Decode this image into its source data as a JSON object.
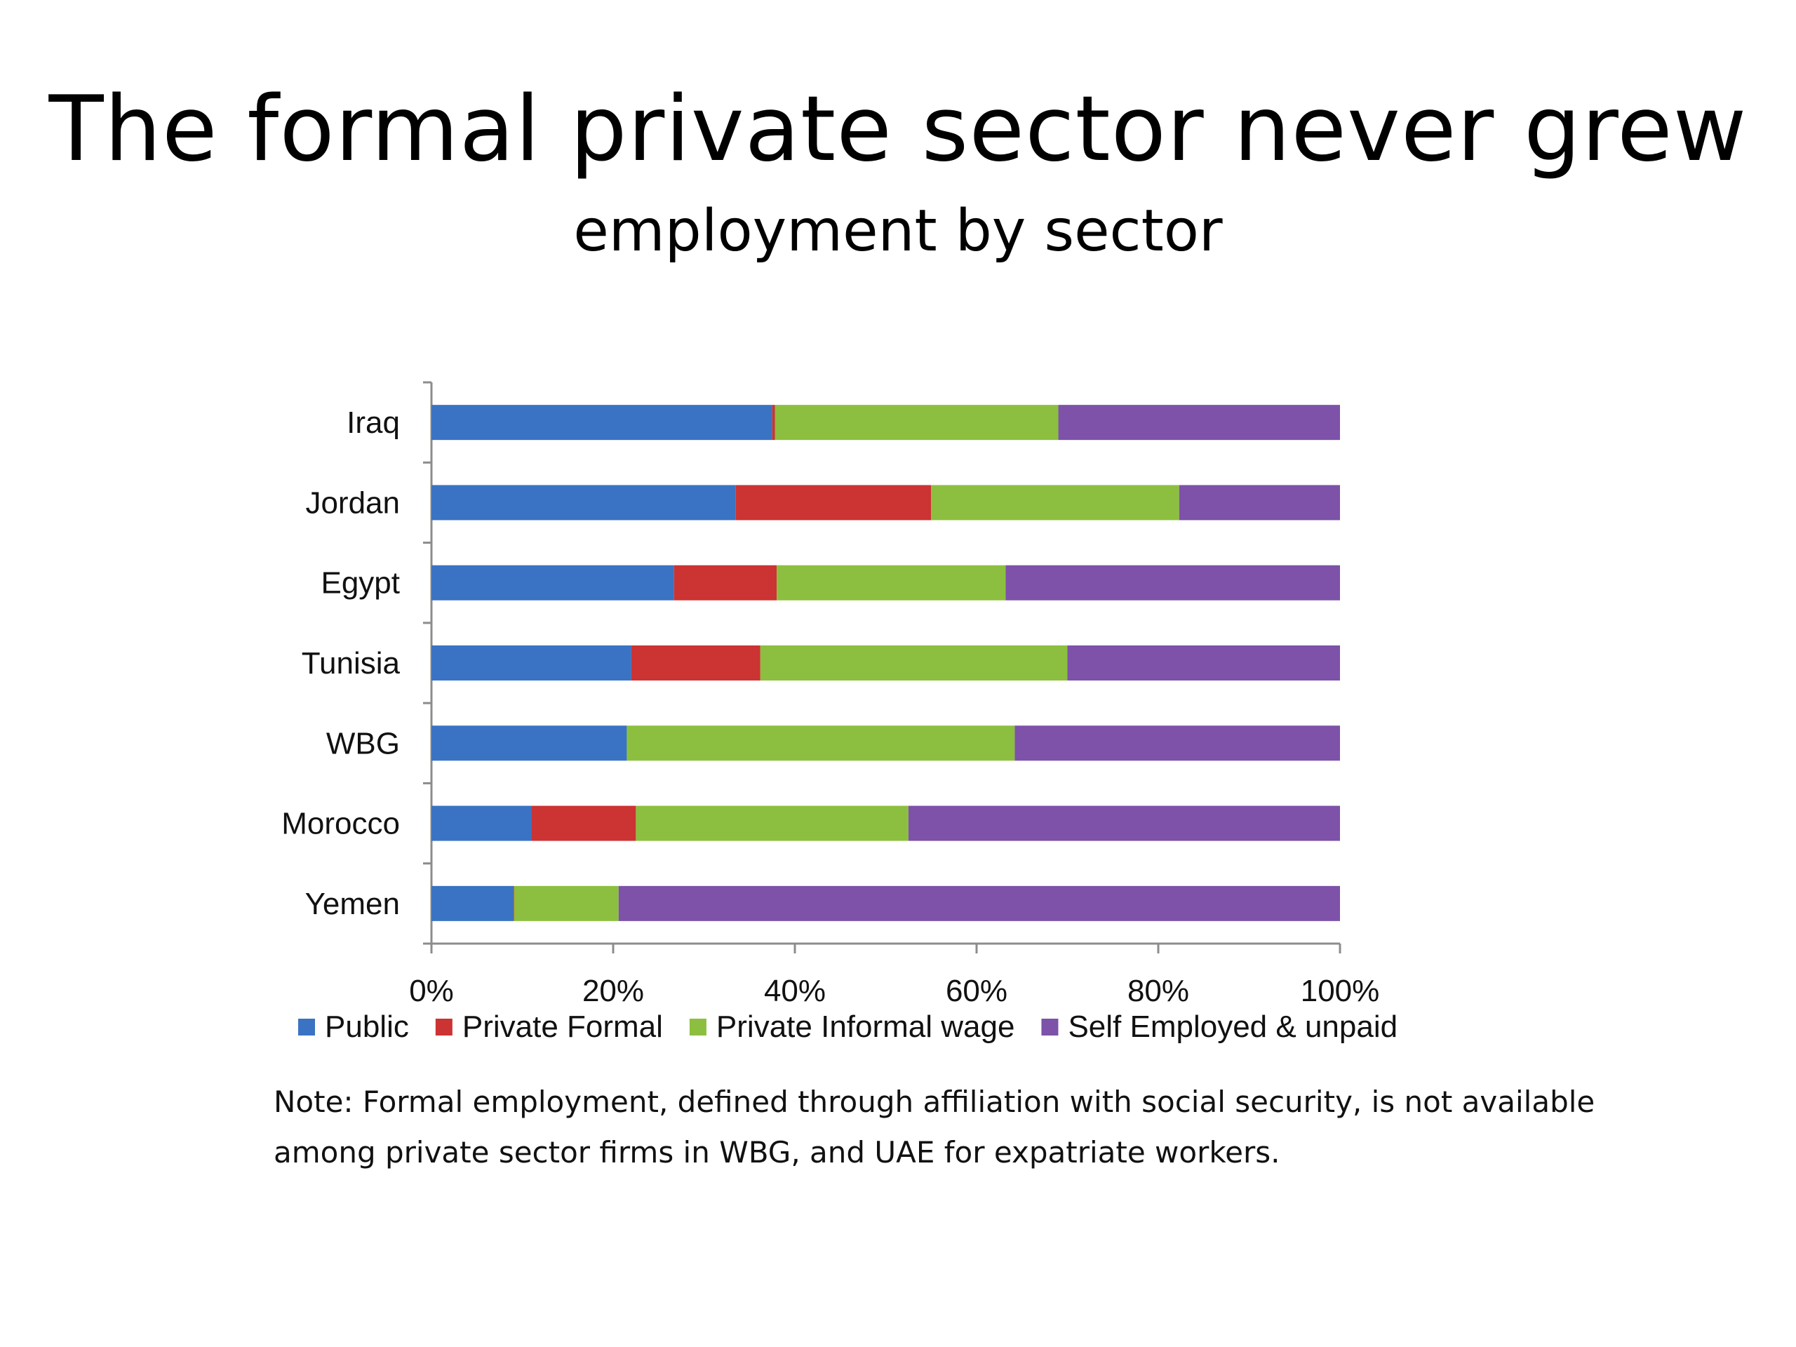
{
  "slide": {
    "title": "The formal private sector never grew",
    "subtitle": "employment by sector",
    "note": "Note: Formal employment, defined through affiliation with social security, is not available among private sector firms in WBG, and UAE for expatriate workers."
  },
  "chart_data": {
    "type": "bar",
    "orientation": "horizontal",
    "stacked": true,
    "categories": [
      "Iraq",
      "Jordan",
      "Egypt",
      "Tunisia",
      "WBG",
      "Morocco",
      "Yemen"
    ],
    "series": [
      {
        "name": "Public",
        "color": "#3a73c3",
        "values": [
          37.5,
          33.5,
          26.7,
          22.0,
          21.5,
          11.0,
          9.0
        ]
      },
      {
        "name": "Private Formal",
        "color": "#cc3333",
        "values": [
          0.3,
          21.5,
          11.3,
          14.2,
          0,
          11.5,
          0.1
        ]
      },
      {
        "name": "Private Informal wage",
        "color": "#8cbf3f",
        "values": [
          31.2,
          27.3,
          25.2,
          33.8,
          42.7,
          30.0,
          11.5
        ]
      },
      {
        "name": "Self Employed & unpaid",
        "color": "#7d52a8",
        "values": [
          31.0,
          17.7,
          36.8,
          30.0,
          35.8,
          47.5,
          79.4
        ]
      }
    ],
    "xlim": [
      0,
      100
    ],
    "xticks": [
      "0%",
      "20%",
      "40%",
      "60%",
      "80%",
      "100%"
    ],
    "grid": false,
    "legend_position": "bottom"
  }
}
